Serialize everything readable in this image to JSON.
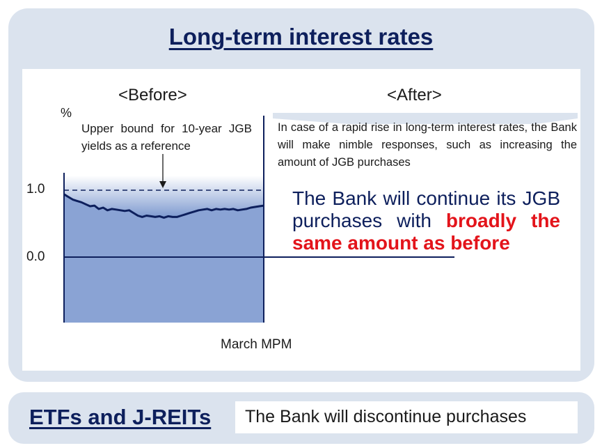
{
  "title": "Long-term interest rates",
  "before": {
    "heading": "<Before>",
    "unit": "%",
    "reference_note": "Upper bound for 10-year JGB yields as a reference",
    "x_label": "March MPM"
  },
  "after": {
    "heading": "<After>",
    "note": "In case of a rapid rise in long-term interest rates, the Bank will make nimble responses, such as increasing the amount of JGB purchases",
    "main_text_plain": "The Bank will continue its JGB purchases with ",
    "main_text_highlight": "broadly the same amount as before"
  },
  "bottom": {
    "label": "ETFs and J-REITs",
    "text": "The Bank will discontinue purchases"
  },
  "colors": {
    "navy": "#0d1f5c",
    "red": "#e3141b",
    "panel": "#dbe3ee",
    "fill": "#8aa3d4"
  },
  "chart_data": {
    "type": "area",
    "y_ticks": [
      "1.0",
      "0.0"
    ],
    "ylim": [
      -1.0,
      1.2
    ],
    "reference_line": 1.0,
    "series": [
      {
        "values": [
          0.94,
          0.9,
          0.86,
          0.84,
          0.82,
          0.79,
          0.76,
          0.77,
          0.72,
          0.74,
          0.7,
          0.72,
          0.71,
          0.7,
          0.69,
          0.7,
          0.66,
          0.62,
          0.6,
          0.62,
          0.61,
          0.6,
          0.61,
          0.59,
          0.61,
          0.6,
          0.6,
          0.62,
          0.64,
          0.66,
          0.68,
          0.7,
          0.71,
          0.72,
          0.7,
          0.72,
          0.71,
          0.72,
          0.71,
          0.72,
          0.7,
          0.71,
          0.72,
          0.74,
          0.75,
          0.76,
          0.77
        ]
      }
    ]
  }
}
